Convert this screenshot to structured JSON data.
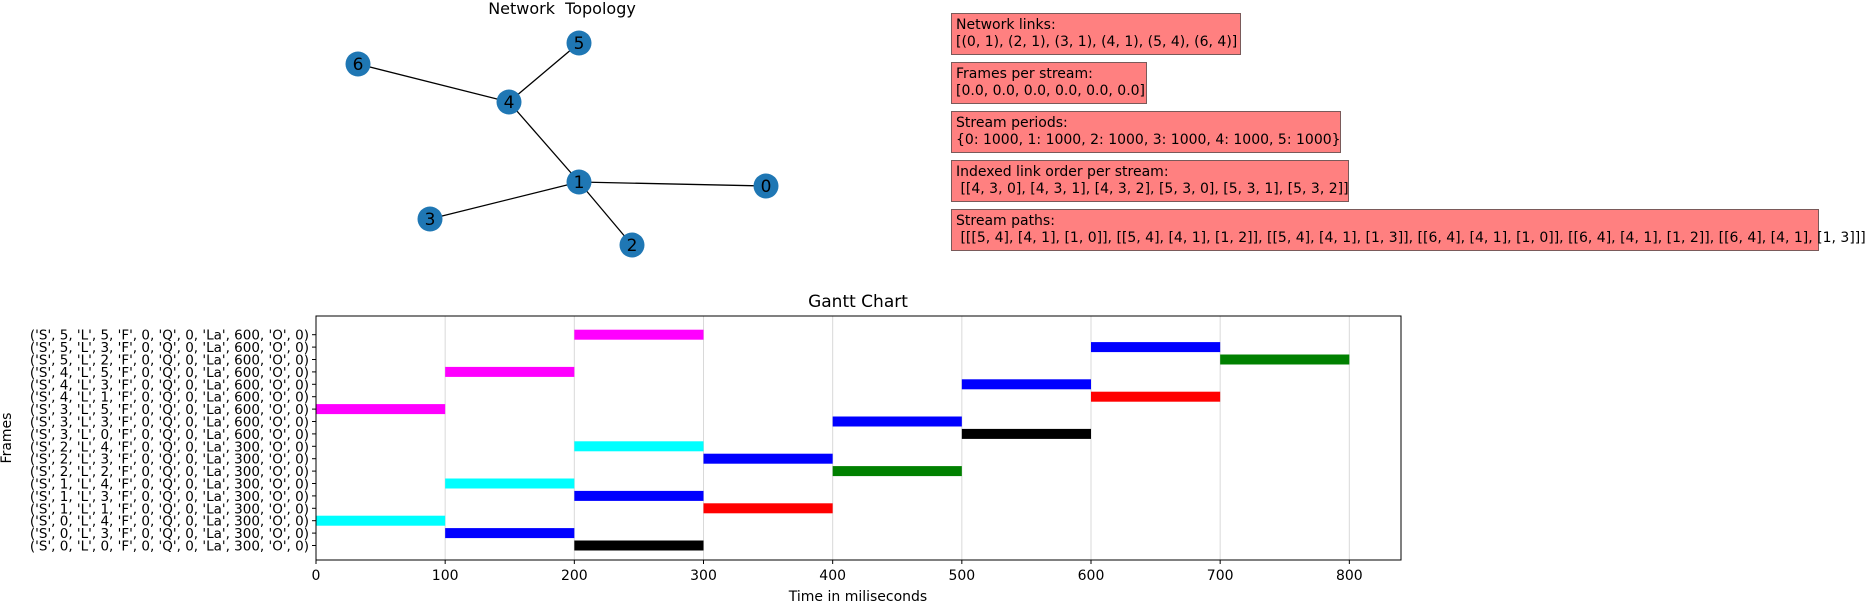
{
  "topology": {
    "title": "Network  Topology",
    "node_color": "#1f77b4",
    "nodes": [
      "0",
      "1",
      "2",
      "3",
      "4",
      "5",
      "6"
    ],
    "edges": [
      [
        0,
        1
      ],
      [
        2,
        1
      ],
      [
        3,
        1
      ],
      [
        4,
        1
      ],
      [
        5,
        4
      ],
      [
        6,
        4
      ]
    ]
  },
  "info_boxes": [
    {
      "title": "Network links:",
      "value": "[(0, 1), (2, 1), (3, 1), (4, 1), (5, 4), (6, 4)]"
    },
    {
      "title": "Frames per stream:",
      "value": "[0.0, 0.0, 0.0, 0.0, 0.0, 0.0]"
    },
    {
      "title": "Stream periods:",
      "value": "{0: 1000, 1: 1000, 2: 1000, 3: 1000, 4: 1000, 5: 1000}"
    },
    {
      "title": "Indexed link order per stream:",
      "value": " [[4, 3, 0], [4, 3, 1], [4, 3, 2], [5, 3, 0], [5, 3, 1], [5, 3, 2]]"
    },
    {
      "title": "Stream paths:",
      "value": " [[[5, 4], [4, 1], [1, 0]], [[5, 4], [4, 1], [1, 2]], [[5, 4], [4, 1], [1, 3]], [[6, 4], [4, 1], [1, 0]], [[6, 4], [4, 1], [1, 2]], [[6, 4], [4, 1], [1, 3]]]"
    }
  ],
  "chart_data": {
    "type": "gantt",
    "title": "Gantt Chart",
    "xlabel": "Time in miliseconds",
    "ylabel": "Frames",
    "xlim": [
      0,
      840
    ],
    "xticks": [
      0,
      100,
      200,
      300,
      400,
      500,
      600,
      700,
      800
    ],
    "grid": "vertical",
    "categories": [
      "('S', 0, 'L', 0, 'F', 0, 'Q', 0, 'La', 300, 'O', 0)",
      "('S', 0, 'L', 3, 'F', 0, 'Q', 0, 'La', 300, 'O', 0)",
      "('S', 0, 'L', 4, 'F', 0, 'Q', 0, 'La', 300, 'O', 0)",
      "('S', 1, 'L', 1, 'F', 0, 'Q', 0, 'La', 300, 'O', 0)",
      "('S', 1, 'L', 3, 'F', 0, 'Q', 0, 'La', 300, 'O', 0)",
      "('S', 1, 'L', 4, 'F', 0, 'Q', 0, 'La', 300, 'O', 0)",
      "('S', 2, 'L', 2, 'F', 0, 'Q', 0, 'La', 300, 'O', 0)",
      "('S', 2, 'L', 3, 'F', 0, 'Q', 0, 'La', 300, 'O', 0)",
      "('S', 2, 'L', 4, 'F', 0, 'Q', 0, 'La', 300, 'O', 0)",
      "('S', 3, 'L', 0, 'F', 0, 'Q', 0, 'La', 600, 'O', 0)",
      "('S', 3, 'L', 3, 'F', 0, 'Q', 0, 'La', 600, 'O', 0)",
      "('S', 3, 'L', 5, 'F', 0, 'Q', 0, 'La', 600, 'O', 0)",
      "('S', 4, 'L', 1, 'F', 0, 'Q', 0, 'La', 600, 'O', 0)",
      "('S', 4, 'L', 3, 'F', 0, 'Q', 0, 'La', 600, 'O', 0)",
      "('S', 4, 'L', 5, 'F', 0, 'Q', 0, 'La', 600, 'O', 0)",
      "('S', 5, 'L', 2, 'F', 0, 'Q', 0, 'La', 600, 'O', 0)",
      "('S', 5, 'L', 3, 'F', 0, 'Q', 0, 'La', 600, 'O', 0)",
      "('S', 5, 'L', 5, 'F', 0, 'Q', 0, 'La', 600, 'O', 0)"
    ],
    "bars": [
      {
        "row": 0,
        "start": 200,
        "end": 300,
        "color": "#000000"
      },
      {
        "row": 1,
        "start": 100,
        "end": 200,
        "color": "#0000ff"
      },
      {
        "row": 2,
        "start": 0,
        "end": 100,
        "color": "#00ffff"
      },
      {
        "row": 3,
        "start": 300,
        "end": 400,
        "color": "#ff0000"
      },
      {
        "row": 4,
        "start": 200,
        "end": 300,
        "color": "#0000ff"
      },
      {
        "row": 5,
        "start": 100,
        "end": 200,
        "color": "#00ffff"
      },
      {
        "row": 6,
        "start": 400,
        "end": 500,
        "color": "#008000"
      },
      {
        "row": 7,
        "start": 300,
        "end": 400,
        "color": "#0000ff"
      },
      {
        "row": 8,
        "start": 200,
        "end": 300,
        "color": "#00ffff"
      },
      {
        "row": 9,
        "start": 500,
        "end": 600,
        "color": "#000000"
      },
      {
        "row": 10,
        "start": 400,
        "end": 500,
        "color": "#0000ff"
      },
      {
        "row": 11,
        "start": 0,
        "end": 100,
        "color": "#ff00ff"
      },
      {
        "row": 12,
        "start": 600,
        "end": 700,
        "color": "#ff0000"
      },
      {
        "row": 13,
        "start": 500,
        "end": 600,
        "color": "#0000ff"
      },
      {
        "row": 14,
        "start": 100,
        "end": 200,
        "color": "#ff00ff"
      },
      {
        "row": 15,
        "start": 700,
        "end": 800,
        "color": "#008000"
      },
      {
        "row": 16,
        "start": 600,
        "end": 700,
        "color": "#0000ff"
      },
      {
        "row": 17,
        "start": 200,
        "end": 300,
        "color": "#ff00ff"
      }
    ]
  }
}
